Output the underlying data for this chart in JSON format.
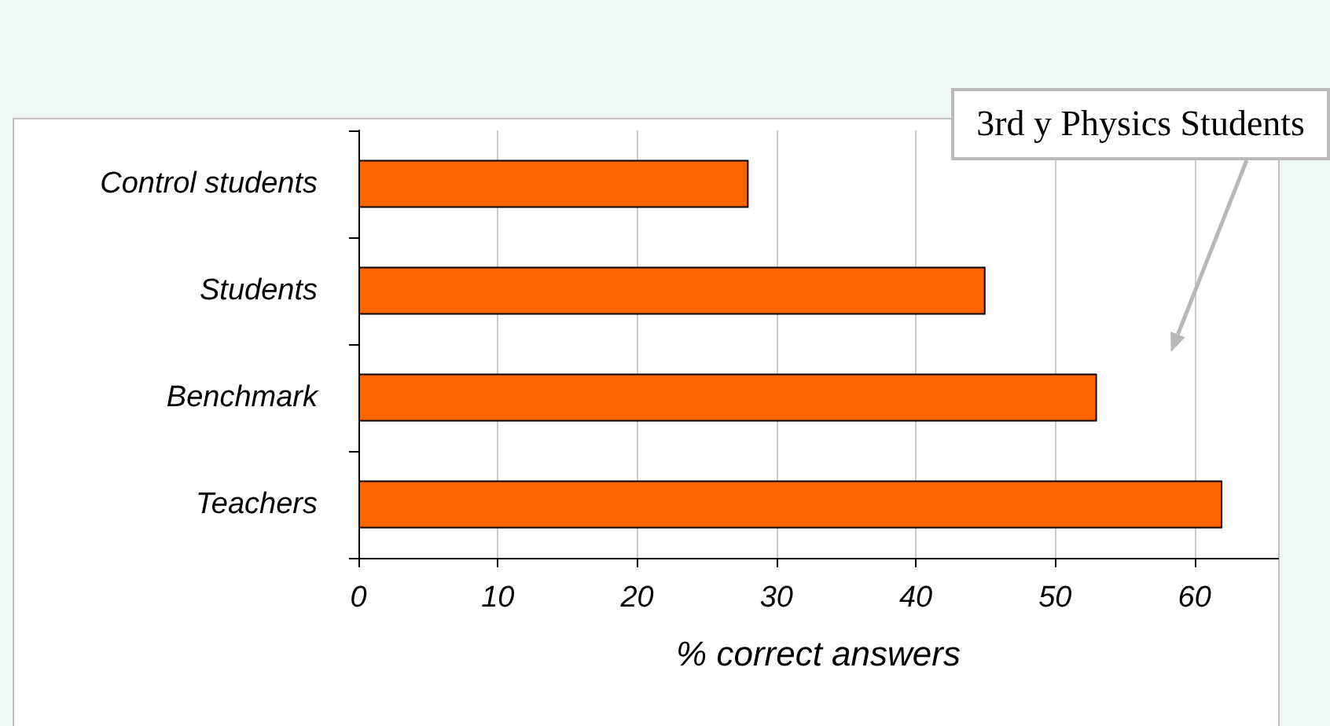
{
  "chart_data": {
    "type": "bar",
    "orientation": "horizontal",
    "xlabel": "% correct answers",
    "categories": [
      "Control students",
      "Students",
      "Benchmark",
      "Teachers"
    ],
    "values": [
      28,
      45,
      53,
      62
    ],
    "color": "#ff6600",
    "xlim": [
      0,
      66
    ],
    "xticks": [
      0,
      10,
      20,
      30,
      40,
      50,
      60
    ],
    "grid": "x",
    "annotations": [
      "3rd y Physics Students"
    ]
  }
}
